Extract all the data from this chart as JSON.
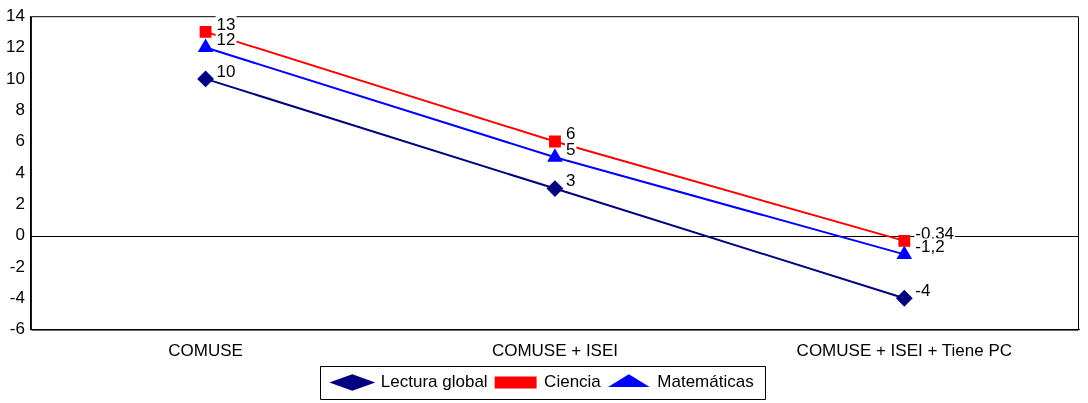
{
  "chart_data": {
    "type": "line",
    "categories": [
      "COMUSE",
      "COMUSE + ISEI",
      "COMUSE + ISEI + Tiene PC"
    ],
    "series": [
      {
        "name": "Lectura global",
        "color": "#000080",
        "marker": "diamond",
        "values": [
          10,
          3,
          -4
        ],
        "value_labels": [
          "10",
          "3",
          "-4"
        ]
      },
      {
        "name": "Ciencia",
        "color": "#ff0000",
        "marker": "square",
        "values": [
          13,
          6,
          -0.34
        ],
        "value_labels": [
          "13",
          "6",
          "-0,34"
        ]
      },
      {
        "name": "Matemáticas",
        "color": "#0000ff",
        "marker": "triangle",
        "values": [
          12,
          5,
          -1.2
        ],
        "value_labels": [
          "12",
          "5",
          "-1,2"
        ]
      }
    ],
    "ylim": [
      -6,
      14
    ],
    "yticks": [
      -6,
      -4,
      -2,
      0,
      2,
      4,
      6,
      8,
      10,
      12,
      14
    ],
    "grid": false,
    "ref_lines": [
      {
        "axis": "y",
        "value": 0,
        "color": "#000000"
      }
    ],
    "legend": "bottom"
  }
}
